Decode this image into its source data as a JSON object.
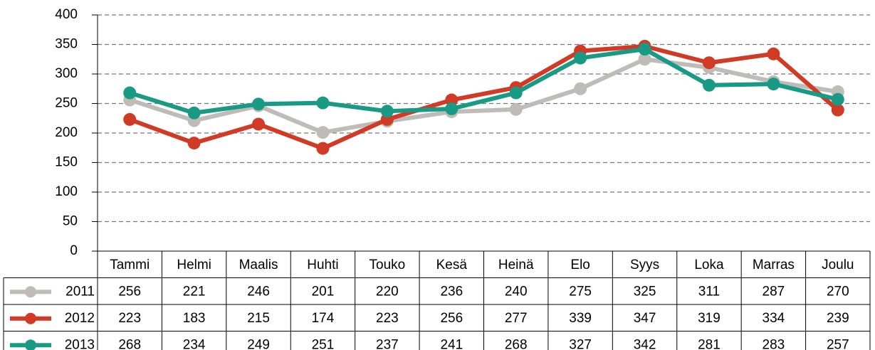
{
  "chart_data": {
    "type": "line",
    "categories": [
      "Tammi",
      "Helmi",
      "Maalis",
      "Huhti",
      "Touko",
      "Kesä",
      "Heinä",
      "Elo",
      "Syys",
      "Loka",
      "Marras",
      "Joulu"
    ],
    "series": [
      {
        "name": "2011",
        "color": "#bfbcb8",
        "values": [
          256,
          221,
          246,
          201,
          220,
          236,
          240,
          275,
          325,
          311,
          287,
          270
        ]
      },
      {
        "name": "2012",
        "color": "#d13a24",
        "values": [
          223,
          183,
          215,
          174,
          223,
          256,
          277,
          339,
          347,
          319,
          334,
          239
        ]
      },
      {
        "name": "2013",
        "color": "#189a84",
        "values": [
          268,
          234,
          249,
          251,
          237,
          241,
          268,
          327,
          342,
          281,
          283,
          257
        ]
      }
    ],
    "ylim": [
      0,
      400
    ],
    "yticks": [
      0,
      50,
      100,
      150,
      200,
      250,
      300,
      350,
      400
    ],
    "grid": true
  }
}
